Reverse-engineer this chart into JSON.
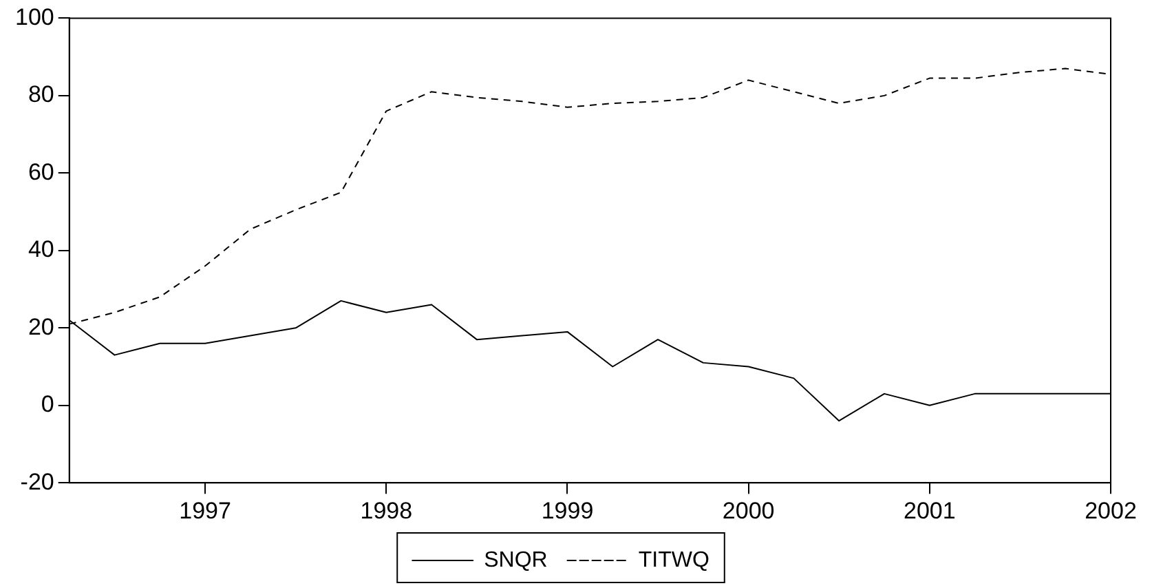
{
  "chart_data": {
    "type": "line",
    "x": [
      1996.25,
      1996.5,
      1996.75,
      1997,
      1997.25,
      1997.5,
      1997.75,
      1998,
      1998.25,
      1998.5,
      1998.75,
      1999,
      1999.25,
      1999.5,
      1999.75,
      2000,
      2000.25,
      2000.5,
      2000.75,
      2001,
      2001.25,
      2001.5,
      2001.75,
      2002
    ],
    "series": [
      {
        "name": "SNQR",
        "color": "#000000",
        "line_style": "solid",
        "values": [
          22,
          13,
          16,
          16,
          18,
          20,
          27,
          24,
          26,
          17,
          18,
          19,
          10,
          17,
          11,
          10,
          7,
          -4,
          3,
          0,
          3,
          3,
          3,
          3
        ]
      },
      {
        "name": "TITWQ",
        "color": "#000000",
        "line_style": "dashed",
        "values": [
          21,
          24,
          28,
          36,
          45.5,
          50.5,
          55,
          76,
          81,
          79.5,
          78.5,
          77,
          78,
          78.5,
          79.5,
          84,
          81,
          78,
          80,
          84.5,
          84.5,
          86,
          87,
          85.5
        ]
      }
    ],
    "xlim": [
      1996.25,
      2002
    ],
    "xticks": [
      1997,
      1998,
      1999,
      2000,
      2001,
      2002
    ],
    "ylim": [
      -20,
      100
    ],
    "yticks": [
      -20,
      0,
      20,
      40,
      60,
      80,
      100
    ],
    "grid": false,
    "legend": "bottom",
    "marker": "none"
  }
}
